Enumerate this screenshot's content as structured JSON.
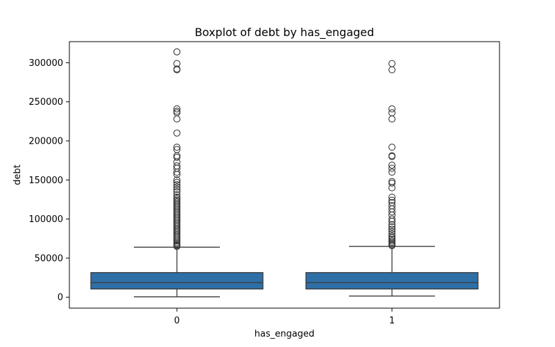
{
  "chart_data": {
    "type": "boxplot",
    "title": "Boxplot of debt by has_engaged",
    "xlabel": "has_engaged",
    "ylabel": "debt",
    "categories": [
      "0",
      "1"
    ],
    "ylim": [
      -14000,
      327000
    ],
    "yticks": [
      0,
      50000,
      100000,
      150000,
      200000,
      250000,
      300000
    ],
    "ytick_labels": [
      "0",
      "50000",
      "100000",
      "150000",
      "200000",
      "250000",
      "300000"
    ],
    "grid": false,
    "box_color": "#2f6fa7",
    "line_color": "#3a3a3a",
    "groups": [
      {
        "category": "0",
        "whisker_low": 500,
        "q1": 10500,
        "median": 18500,
        "q3": 31500,
        "whisker_high": 64000,
        "outliers": [
          314000,
          299000,
          292000,
          291000,
          241000,
          238000,
          236000,
          228000,
          210000,
          192000,
          189000,
          181000,
          179000,
          173000,
          168000,
          165000,
          160000,
          157000,
          150000,
          147000,
          144000,
          141000,
          138000,
          135000,
          131000,
          128000,
          126000,
          124000,
          122000,
          120000,
          118000,
          116000,
          114000,
          112000,
          110000,
          108000,
          106000,
          104000,
          102000,
          100000,
          98000,
          96000,
          94000,
          92000,
          90000,
          88000,
          86000,
          84000,
          82000,
          80000,
          78000,
          76000,
          74000,
          72000,
          70000,
          68500,
          67000,
          66000,
          65000
        ]
      },
      {
        "category": "1",
        "whisker_low": 1500,
        "q1": 10500,
        "median": 18500,
        "q3": 31500,
        "whisker_high": 65000,
        "outliers": [
          299000,
          291000,
          241000,
          236000,
          228000,
          192000,
          181000,
          180000,
          169000,
          165000,
          160000,
          148000,
          146000,
          140000,
          128000,
          124000,
          121000,
          117000,
          113000,
          109000,
          105000,
          100000,
          97000,
          93000,
          90000,
          87000,
          84000,
          81000,
          78000,
          76000,
          74000,
          72000,
          70000,
          68500,
          67000,
          66000
        ]
      }
    ]
  }
}
